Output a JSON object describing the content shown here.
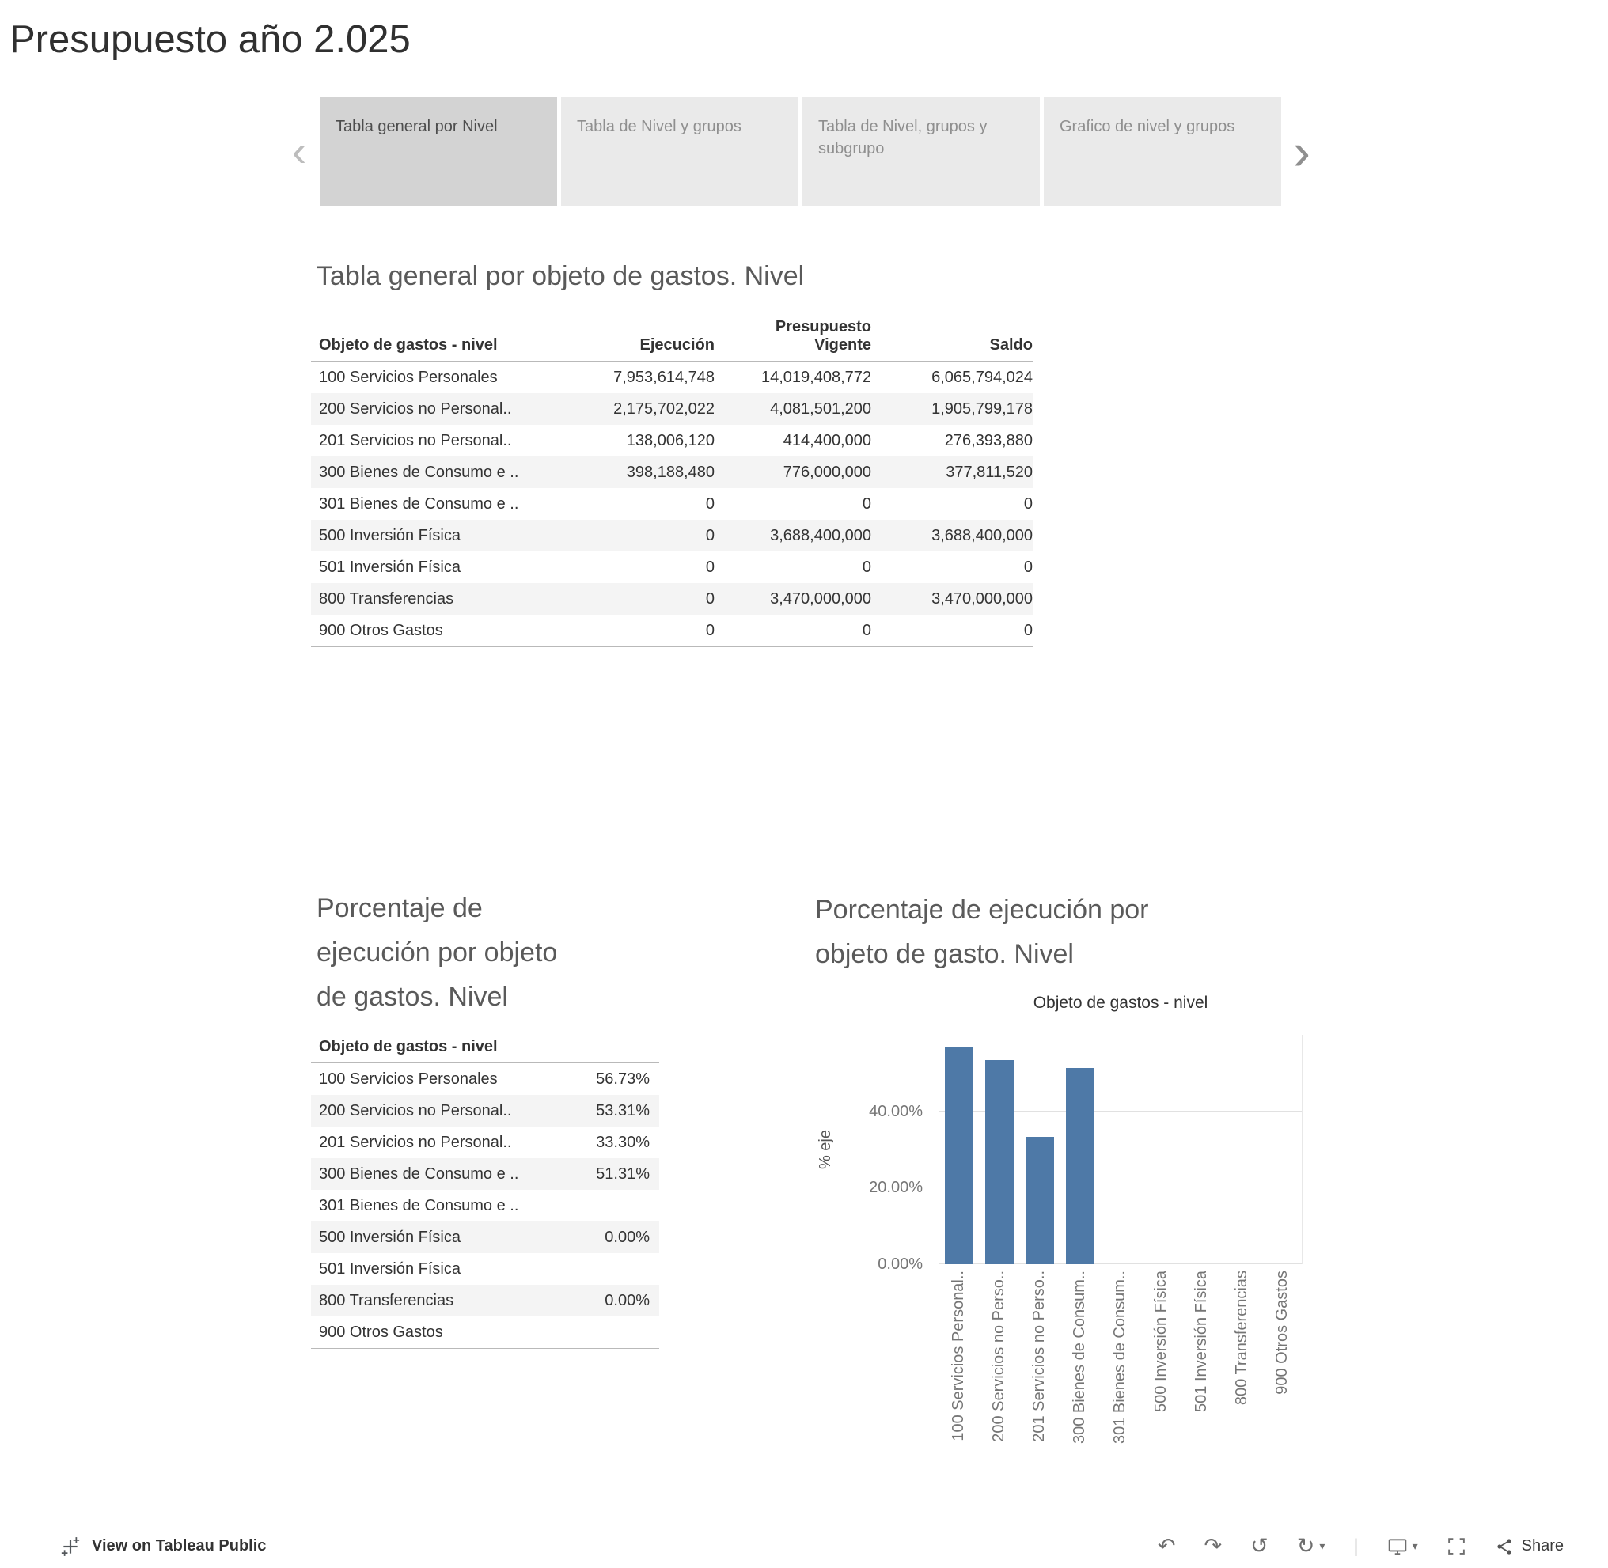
{
  "page": {
    "title": "Presupuesto año 2.025"
  },
  "tabs": {
    "items": [
      {
        "label": "Tabla general por Nivel",
        "active": true
      },
      {
        "label": "Tabla de Nivel y grupos",
        "active": false
      },
      {
        "label": "Tabla de Nivel, grupos y subgrupo",
        "active": false
      },
      {
        "label": "Grafico de nivel y grupos",
        "active": false
      }
    ]
  },
  "main_table": {
    "title": "Tabla general por objeto de gastos. Nivel",
    "header": {
      "objeto": "Objeto de gastos - nivel",
      "ejecucion": "Ejecución",
      "presupuesto_line1": "Presupuesto",
      "presupuesto_line2": "Vigente",
      "saldo": "Saldo"
    },
    "rows": [
      {
        "label": "100 Servicios Personales",
        "ejecucion": "7,953,614,748",
        "vigente": "14,019,408,772",
        "saldo": "6,065,794,024"
      },
      {
        "label": "200 Servicios no Personal..",
        "ejecucion": "2,175,702,022",
        "vigente": "4,081,501,200",
        "saldo": "1,905,799,178"
      },
      {
        "label": "201 Servicios no Personal..",
        "ejecucion": "138,006,120",
        "vigente": "414,400,000",
        "saldo": "276,393,880"
      },
      {
        "label": "300 Bienes de Consumo e ..",
        "ejecucion": "398,188,480",
        "vigente": "776,000,000",
        "saldo": "377,811,520"
      },
      {
        "label": "301 Bienes de Consumo e ..",
        "ejecucion": "0",
        "vigente": "0",
        "saldo": "0"
      },
      {
        "label": "500 Inversión Física",
        "ejecucion": "0",
        "vigente": "3,688,400,000",
        "saldo": "3,688,400,000"
      },
      {
        "label": "501 Inversión Física",
        "ejecucion": "0",
        "vigente": "0",
        "saldo": "0"
      },
      {
        "label": "800 Transferencias",
        "ejecucion": "0",
        "vigente": "3,470,000,000",
        "saldo": "3,470,000,000"
      },
      {
        "label": "900 Otros Gastos",
        "ejecucion": "0",
        "vigente": "0",
        "saldo": "0"
      }
    ]
  },
  "pct_table": {
    "title": "Porcentaje de ejecución por objeto de gastos. Nivel",
    "header": "Objeto de gastos - nivel",
    "rows": [
      {
        "label": "100 Servicios Personales",
        "pct": "56.73%"
      },
      {
        "label": "200 Servicios no Personal..",
        "pct": "53.31%"
      },
      {
        "label": "201 Servicios no Personal..",
        "pct": "33.30%"
      },
      {
        "label": "300 Bienes de Consumo e ..",
        "pct": "51.31%"
      },
      {
        "label": "301 Bienes de Consumo e ..",
        "pct": ""
      },
      {
        "label": "500 Inversión Física",
        "pct": "0.00%"
      },
      {
        "label": "501 Inversión Física",
        "pct": ""
      },
      {
        "label": "800 Transferencias",
        "pct": "0.00%"
      },
      {
        "label": "900 Otros Gastos",
        "pct": ""
      }
    ]
  },
  "chart_data": {
    "type": "bar",
    "title": "Porcentaje de ejecución por objeto de gasto. Nivel",
    "xlabel": "Objeto de gastos - nivel",
    "ylabel": "% eje",
    "categories": [
      "100 Servicios Personal..",
      "200 Servicios no Perso..",
      "201 Servicios no Perso..",
      "300 Bienes de Consum..",
      "301 Bienes de Consum..",
      "500 Inversión Física",
      "501 Inversión Física",
      "800 Transferencias",
      "900 Otros Gastos"
    ],
    "values": [
      56.73,
      53.31,
      33.3,
      51.31,
      0,
      0,
      0,
      0,
      0
    ],
    "y_ticks": [
      "0.00%",
      "20.00%",
      "40.00%"
    ],
    "ylim": [
      0,
      60
    ],
    "grid": true,
    "legend": "none",
    "bar_color": "#4e79a7"
  },
  "toolbar": {
    "view_label": "View on Tableau Public",
    "share_label": "Share"
  },
  "icons": {
    "tabs_scroll_left": "‹",
    "tabs_scroll_right": "›",
    "undo": "↶",
    "redo": "↷",
    "reset": "↺",
    "replay": "↻",
    "caret": "▾",
    "separator": "|"
  }
}
